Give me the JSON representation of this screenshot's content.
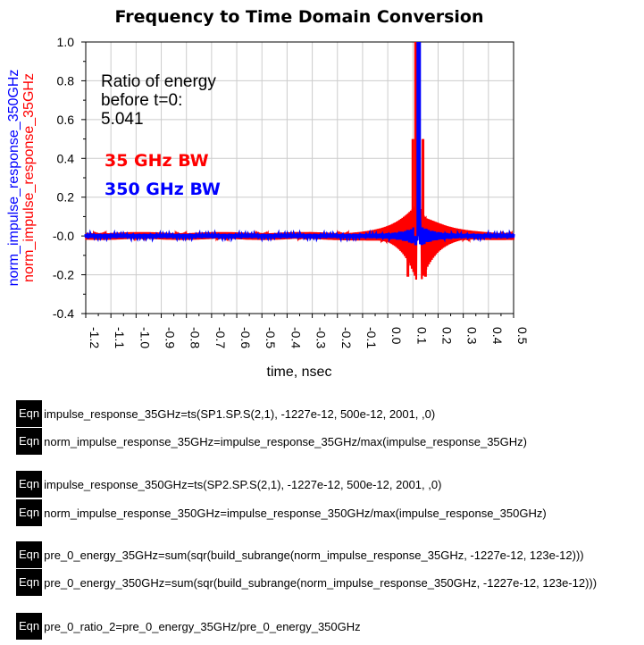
{
  "chart_data": {
    "type": "line",
    "title": "Frequency to Time Domain Conversion",
    "xlabel": "time, nsec",
    "ylabels": [
      "norm_impulse_response_350GHz",
      "norm_impulse_response_35GHz"
    ],
    "xlim": [
      -1.2,
      0.5
    ],
    "ylim": [
      -0.4,
      1.0
    ],
    "x_ticks": [
      "-1.2",
      "-1.1",
      "-1.0",
      "-0.9",
      "-0.8",
      "-0.7",
      "-0.6",
      "-0.5",
      "-0.4",
      "-0.3",
      "-0.2",
      "-0.1",
      "0.0",
      "0.1",
      "0.2",
      "0.3",
      "0.4",
      "0.5"
    ],
    "y_ticks": [
      "1.0",
      "0.8",
      "0.6",
      "0.4",
      "0.2",
      "-0.0",
      "-0.2",
      "-0.4"
    ],
    "grid": true,
    "series": [
      {
        "name": "35 GHz BW",
        "color": "#ff0000",
        "peak_x": 0.123,
        "peak_y": 1.0,
        "sidelobes": [
          [
            0.1,
            0.5
          ],
          [
            0.14,
            0.5
          ],
          [
            0.08,
            -0.21
          ],
          [
            0.15,
            -0.21
          ]
        ],
        "ringing_amplitude_far": 0.02
      },
      {
        "name": "350 GHz BW",
        "color": "#0000ff",
        "peak_x": 0.123,
        "peak_y": 1.0,
        "ringing_amplitude_far": 0.01
      }
    ],
    "annotations": {
      "ratio_label": "Ratio of energy\nbefore t=0:\n5.041",
      "legend_35": "35 GHz BW",
      "legend_350": "350 GHz BW"
    }
  },
  "equations": [
    {
      "tag": "Eqn",
      "text": "impulse_response_35GHz=ts(SP1.SP.S(2,1), -1227e-12, 500e-12, 2001, ,0)"
    },
    {
      "tag": "Eqn",
      "text": "norm_impulse_response_35GHz=impulse_response_35GHz/max(impulse_response_35GHz)"
    },
    {
      "tag": "Eqn",
      "text": "impulse_response_350GHz=ts(SP2.SP.S(2,1), -1227e-12, 500e-12, 2001, ,0)"
    },
    {
      "tag": "Eqn",
      "text": "norm_impulse_response_350GHz=impulse_response_350GHz/max(impulse_response_350GHz)"
    },
    {
      "tag": "Eqn",
      "text": "pre_0_energy_35GHz=sum(sqr(build_subrange(norm_impulse_response_35GHz, -1227e-12, 123e-12)))"
    },
    {
      "tag": "Eqn",
      "text": "pre_0_energy_350GHz=sum(sqr(build_subrange(norm_impulse_response_350GHz, -1227e-12, 123e-12)))"
    },
    {
      "tag": "Eqn",
      "text": "pre_0_ratio_2=pre_0_energy_35GHz/pre_0_energy_350GHz"
    }
  ]
}
